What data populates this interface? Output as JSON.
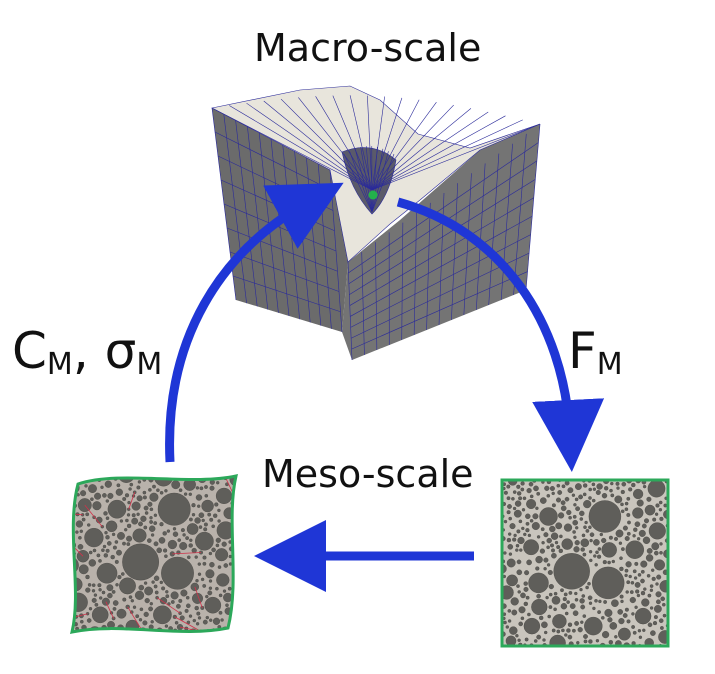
{
  "macro": {
    "title": "Macro-scale"
  },
  "meso": {
    "title": "Meso-scale"
  },
  "left_quantity": {
    "c_main": "C",
    "c_sub": "M",
    "sep": ", ",
    "sigma_main": "σ",
    "sigma_sub": "M"
  },
  "right_quantity": {
    "f_main": "F",
    "f_sub": "M"
  },
  "colors": {
    "arrow": "#1f36d6",
    "border": "#2ca85a",
    "mesh_line": "#2b2b9a",
    "mesh_side": "#6a6a6a",
    "mesh_top": "#e9e6dc",
    "aggregate": "#5f5e5a",
    "matrix": "#c9c5bd",
    "crack": "#d0324a",
    "gauss_point": "#23b24b"
  },
  "icons": {
    "macro_block": "deformed-mesh-block",
    "meso_sample": "particle-sample",
    "deformed_sample": "deformed-particle-sample-with-cracks"
  }
}
